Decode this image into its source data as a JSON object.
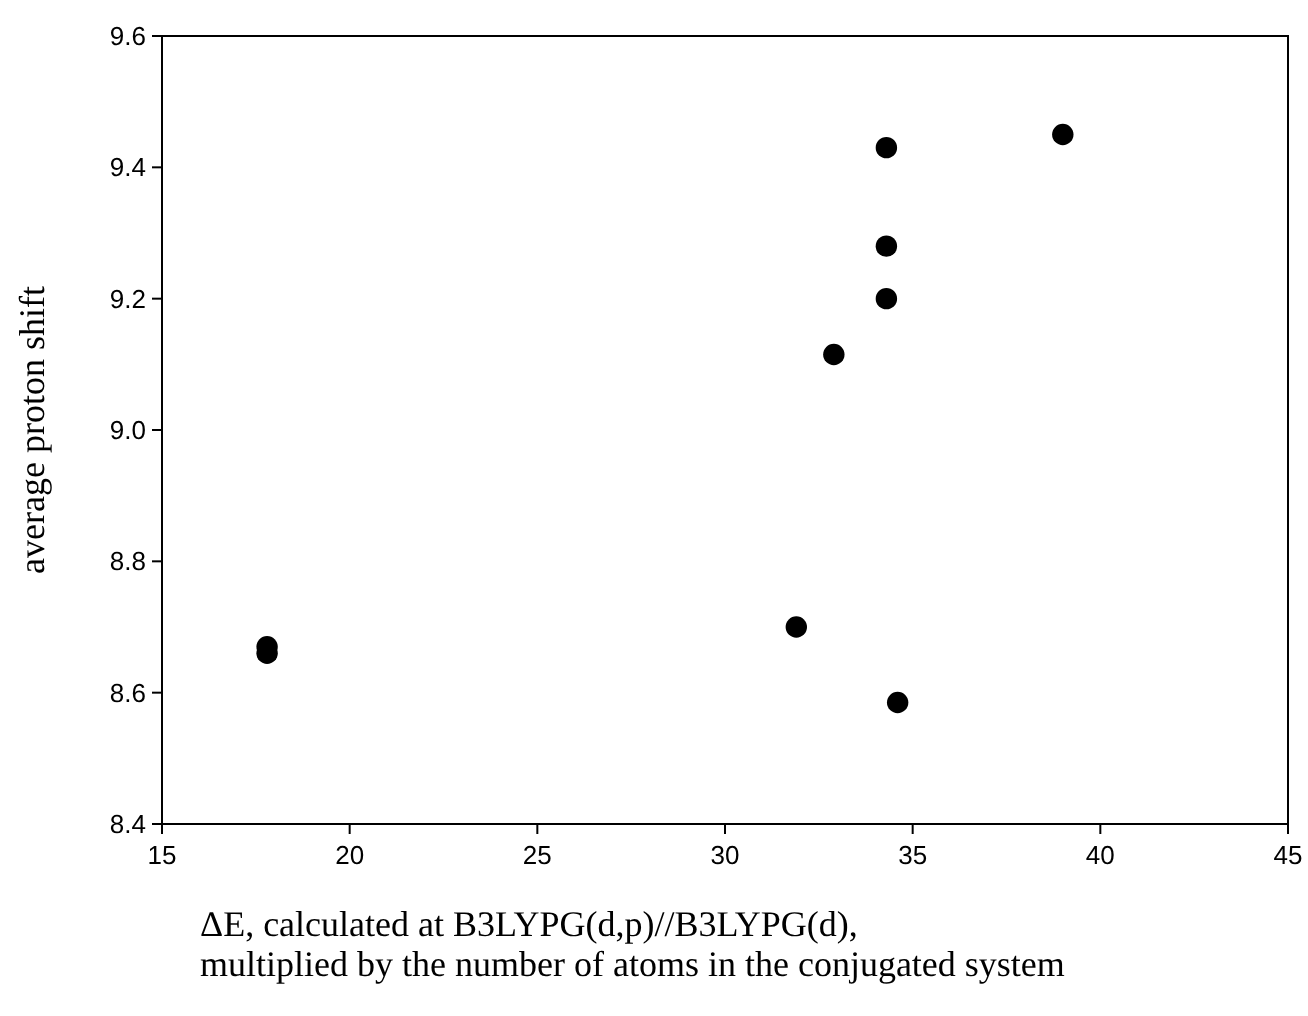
{
  "chart_data": {
    "type": "scatter",
    "xlabel": "ΔE, calculated at B3LYPG(d,p)//B3LYPG(d),\nmultiplied by the number of atoms in the conjugated system",
    "ylabel": "average proton shift",
    "x": [
      17.8,
      17.8,
      31.9,
      32.9,
      34.3,
      34.3,
      34.3,
      34.6,
      39.0
    ],
    "series": [
      {
        "color": "#000000",
        "values": [
          8.67,
          8.66,
          8.7,
          9.115,
          9.43,
          9.28,
          9.2,
          8.585,
          9.45
        ]
      }
    ],
    "xlim": [
      15,
      45
    ],
    "xticks": [
      15,
      20,
      25,
      30,
      35,
      40,
      45
    ],
    "ylim": [
      8.4,
      9.6
    ],
    "yticks": [
      {
        "value": 8.4,
        "label": "8.4"
      },
      {
        "value": 8.6,
        "label": "8.6"
      },
      {
        "value": 8.8,
        "label": "8.8"
      },
      {
        "value": 9.0,
        "label": "9.0"
      },
      {
        "value": 9.2,
        "label": "9.2"
      },
      {
        "value": 9.4,
        "label": "9.4"
      },
      {
        "value": 9.6,
        "label": "9.6"
      }
    ],
    "grid": false,
    "marker": "circle"
  }
}
